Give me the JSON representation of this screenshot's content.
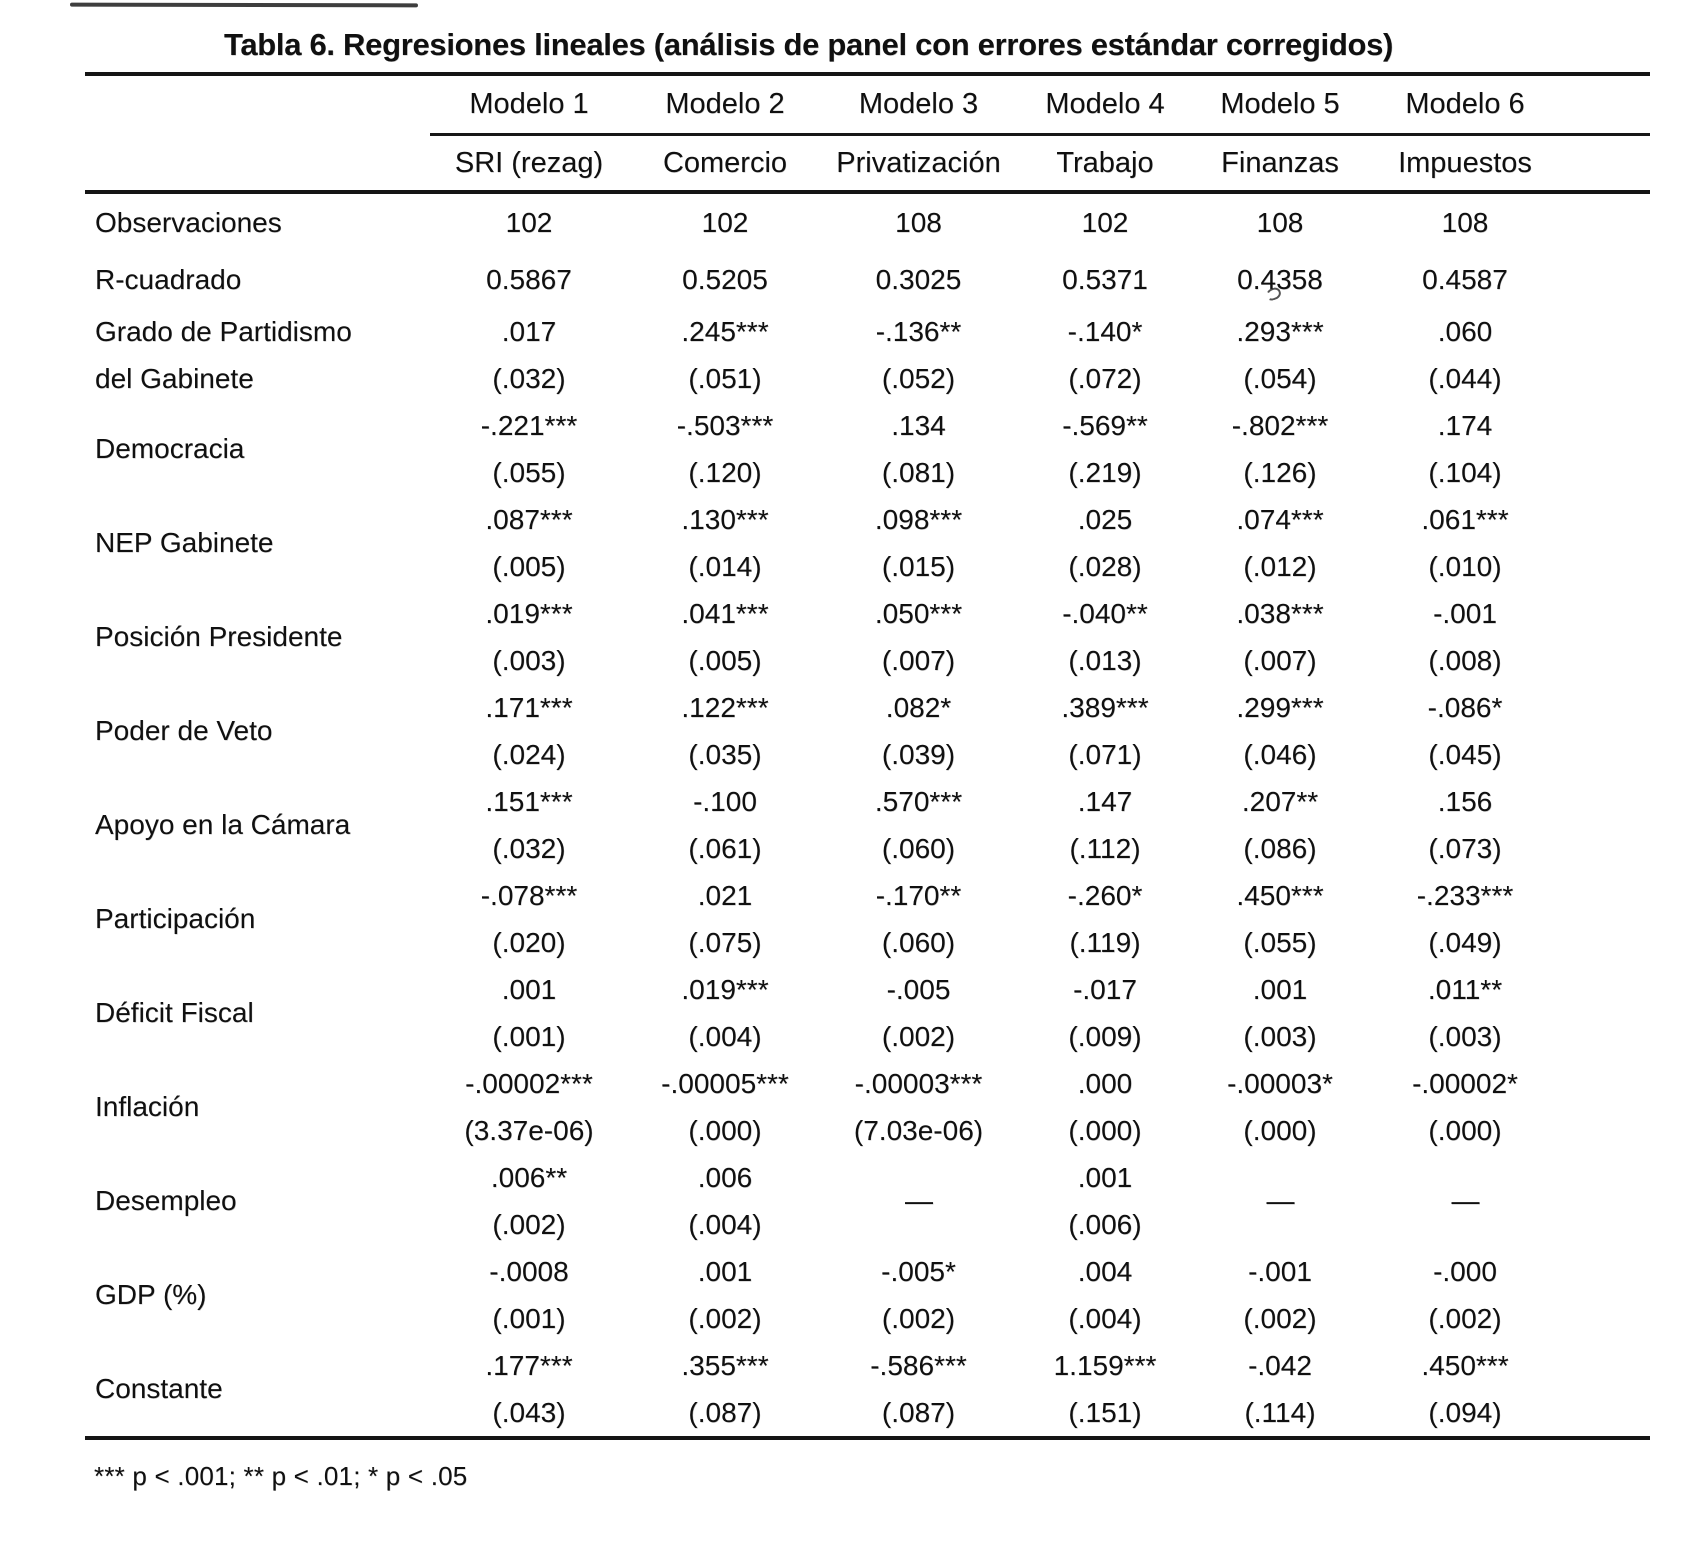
{
  "title": "Tabla 6. Regresiones lineales (análisis de panel con errores estándar corregidos)",
  "header": {
    "models": [
      "Modelo 1",
      "Modelo 2",
      "Modelo 3",
      "Modelo 4",
      "Modelo 5",
      "Modelo 6"
    ],
    "dependents": [
      "SRI (rezag)",
      "Comercio",
      "Privatización",
      "Trabajo",
      "Finanzas",
      "Impuestos"
    ]
  },
  "stats_rows": [
    {
      "label": "Observaciones",
      "values": [
        "102",
        "102",
        "108",
        "102",
        "108",
        "108"
      ]
    },
    {
      "label": "R-cuadrado",
      "values": [
        "0.5867",
        "0.5205",
        "0.3025",
        "0.5371",
        "0.4358",
        "0.4587"
      ]
    }
  ],
  "coef_rows": [
    {
      "label": "Grado de Partidismo",
      "label2": "del Gabinete",
      "coef": [
        ".017",
        ".245***",
        "-.136**",
        "-.140*",
        ".293***",
        ".060"
      ],
      "se": [
        "(.032)",
        "(.051)",
        "(.052)",
        "(.072)",
        "(.054)",
        "(.044)"
      ]
    },
    {
      "label": "Democracia",
      "coef": [
        "-.221***",
        "-.503***",
        ".134",
        "-.569**",
        "-.802***",
        ".174"
      ],
      "se": [
        "(.055)",
        "(.120)",
        "(.081)",
        "(.219)",
        "(.126)",
        "(.104)"
      ]
    },
    {
      "label": "NEP Gabinete",
      "coef": [
        ".087***",
        ".130***",
        ".098***",
        ".025",
        ".074***",
        ".061***"
      ],
      "se": [
        "(.005)",
        "(.014)",
        "(.015)",
        "(.028)",
        "(.012)",
        "(.010)"
      ]
    },
    {
      "label": "Posición Presidente",
      "coef": [
        ".019***",
        ".041***",
        ".050***",
        "-.040**",
        ".038***",
        "-.001"
      ],
      "se": [
        "(.003)",
        "(.005)",
        "(.007)",
        "(.013)",
        "(.007)",
        "(.008)"
      ]
    },
    {
      "label": "Poder de Veto",
      "coef": [
        ".171***",
        ".122***",
        ".082*",
        ".389***",
        ".299***",
        "-.086*"
      ],
      "se": [
        "(.024)",
        "(.035)",
        "(.039)",
        "(.071)",
        "(.046)",
        "(.045)"
      ]
    },
    {
      "label": "Apoyo en la Cámara",
      "coef": [
        ".151***",
        "-.100",
        ".570***",
        ".147",
        ".207**",
        ".156"
      ],
      "se": [
        "(.032)",
        "(.061)",
        "(.060)",
        "(.112)",
        "(.086)",
        "(.073)"
      ]
    },
    {
      "label": "Participación",
      "coef": [
        "-.078***",
        ".021",
        "-.170**",
        "-.260*",
        ".450***",
        "-.233***"
      ],
      "se": [
        "(.020)",
        "(.075)",
        "(.060)",
        "(.119)",
        "(.055)",
        "(.049)"
      ]
    },
    {
      "label": "Déficit Fiscal",
      "coef": [
        ".001",
        ".019***",
        "-.005",
        "-.017",
        ".001",
        ".011**"
      ],
      "se": [
        "(.001)",
        "(.004)",
        "(.002)",
        "(.009)",
        "(.003)",
        "(.003)"
      ]
    },
    {
      "label": "Inflación",
      "coef": [
        "-.00002***",
        "-.00005***",
        "-.00003***",
        ".000",
        "-.00003*",
        "-.00002*"
      ],
      "se": [
        "(3.37e-06)",
        "(.000)",
        "(7.03e-06)",
        "(.000)",
        "(.000)",
        "(.000)"
      ]
    },
    {
      "label": "Desempleo",
      "coef": [
        ".006**",
        ".006",
        "—",
        ".001",
        "—",
        "—"
      ],
      "se": [
        "(.002)",
        "(.004)",
        "",
        "(.006)",
        "",
        ""
      ]
    },
    {
      "label": "GDP (%)",
      "coef": [
        "-.0008",
        ".001",
        "-.005*",
        ".004",
        "-.001",
        "-.000"
      ],
      "se": [
        "(.001)",
        "(.002)",
        "(.002)",
        "(.004)",
        "(.002)",
        "(.002)"
      ]
    },
    {
      "label": "Constante",
      "coef": [
        ".177***",
        ".355***",
        "-.586***",
        "1.159***",
        "-.042",
        ".450***"
      ],
      "se": [
        "(.043)",
        "(.087)",
        "(.087)",
        "(.151)",
        "(.114)",
        "(.094)"
      ]
    }
  ],
  "footnote": "*** p < .001; ** p < .01; * p < .05"
}
